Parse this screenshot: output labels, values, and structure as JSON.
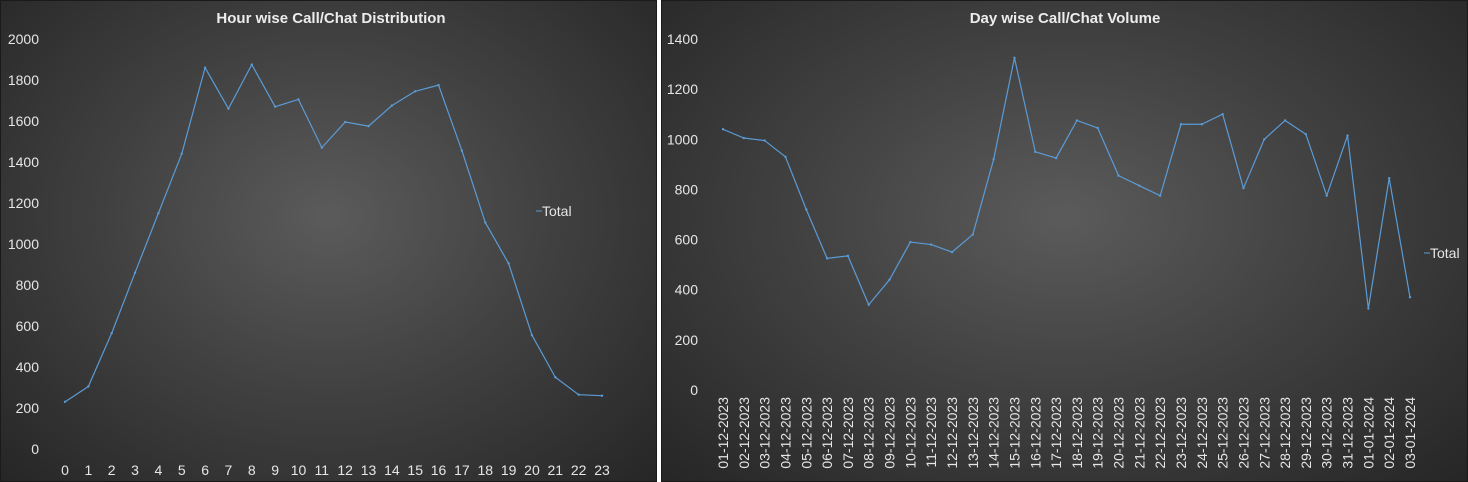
{
  "chart_data": [
    {
      "type": "line",
      "title": "Hour wise Call/Chat Distribution",
      "xlabel": "",
      "ylabel": "",
      "ylim": [
        0,
        2000
      ],
      "yticks": [
        0,
        200,
        400,
        600,
        800,
        1000,
        1200,
        1400,
        1600,
        1800,
        2000
      ],
      "categories": [
        "0",
        "1",
        "2",
        "3",
        "4",
        "5",
        "6",
        "7",
        "8",
        "9",
        "10",
        "11",
        "12",
        "13",
        "14",
        "15",
        "16",
        "17",
        "18",
        "19",
        "20",
        "21",
        "22",
        "23"
      ],
      "series": [
        {
          "name": "Total",
          "color": "#5b9bd5",
          "values": [
            230,
            305,
            565,
            860,
            1150,
            1440,
            1860,
            1660,
            1875,
            1670,
            1705,
            1470,
            1595,
            1575,
            1675,
            1745,
            1775,
            1455,
            1105,
            905,
            555,
            350,
            265,
            260
          ]
        }
      ],
      "legend": "right",
      "grid": false
    },
    {
      "type": "line",
      "title": "Day wise Call/Chat Volume",
      "xlabel": "",
      "ylabel": "",
      "ylim": [
        0,
        1400
      ],
      "yticks": [
        0,
        200,
        400,
        600,
        800,
        1000,
        1200,
        1400
      ],
      "categories": [
        "01-12-2023",
        "02-12-2023",
        "03-12-2023",
        "04-12-2023",
        "05-12-2023",
        "06-12-2023",
        "07-12-2023",
        "08-12-2023",
        "09-12-2023",
        "10-12-2023",
        "11-12-2023",
        "12-12-2023",
        "13-12-2023",
        "14-12-2023",
        "15-12-2023",
        "16-12-2023",
        "17-12-2023",
        "18-12-2023",
        "19-12-2023",
        "20-12-2023",
        "21-12-2023",
        "22-12-2023",
        "23-12-2023",
        "24-12-2023",
        "25-12-2023",
        "26-12-2023",
        "27-12-2023",
        "28-12-2023",
        "29-12-2023",
        "30-12-2023",
        "31-12-2023",
        "01-01-2024",
        "02-01-2024",
        "03-01-2024"
      ],
      "series": [
        {
          "name": "Total",
          "color": "#5b9bd5",
          "values": [
            1040,
            1005,
            995,
            930,
            720,
            525,
            535,
            340,
            440,
            590,
            580,
            550,
            620,
            920,
            1325,
            950,
            925,
            1075,
            1045,
            855,
            815,
            775,
            1060,
            1060,
            1100,
            805,
            1000,
            1075,
            1020,
            775,
            1015,
            325,
            845,
            370
          ]
        }
      ],
      "legend": "right",
      "grid": false
    }
  ]
}
